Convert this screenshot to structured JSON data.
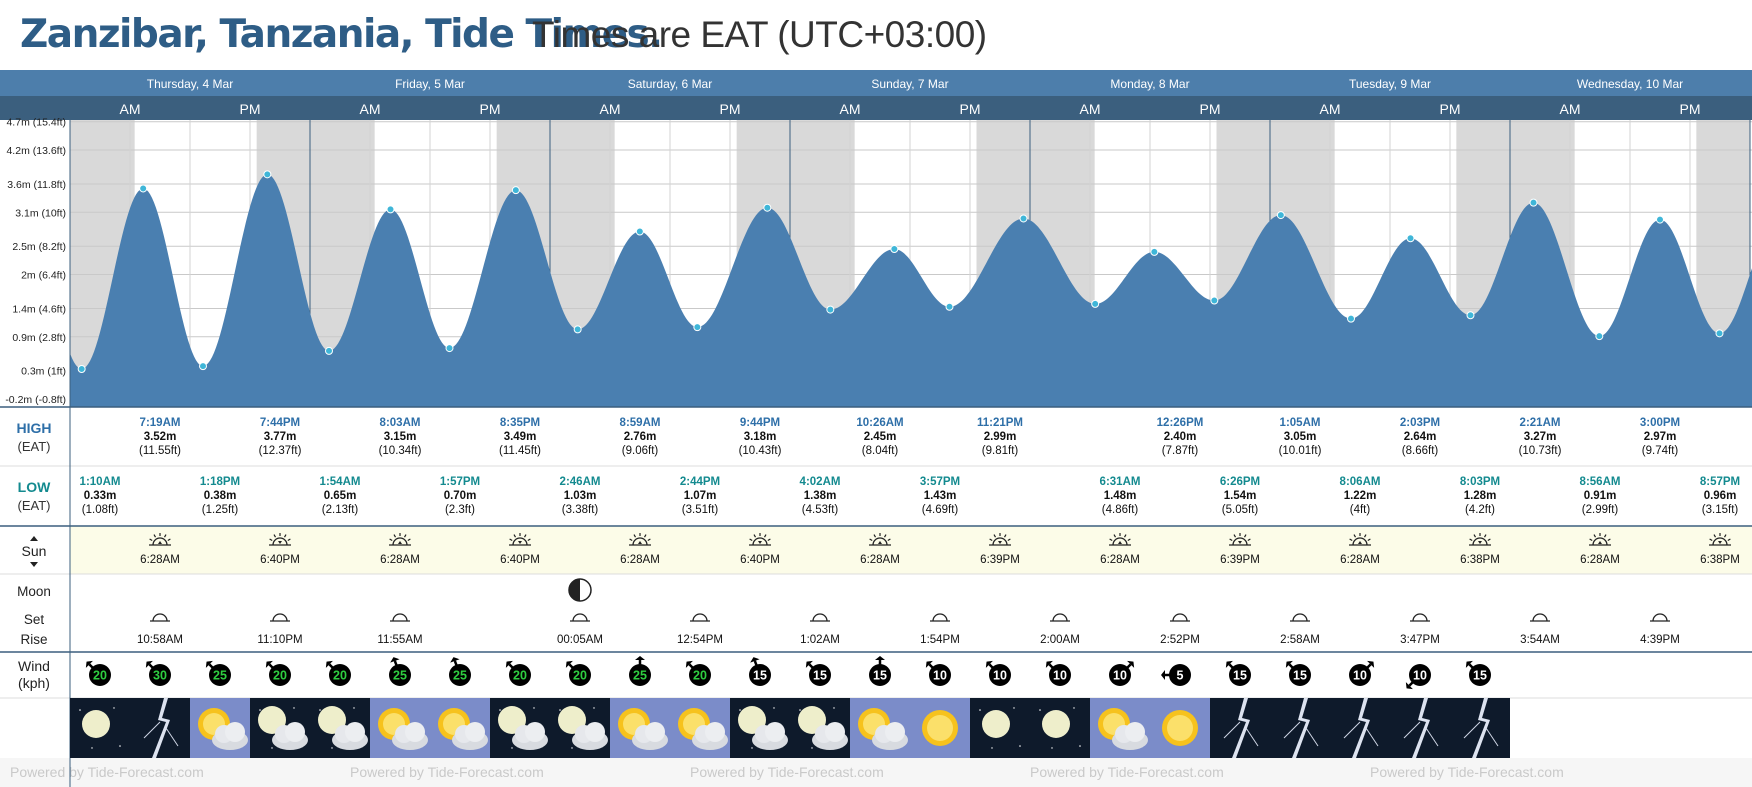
{
  "title": {
    "main": "Zanzibar, Tanzania, Tide Times.",
    "sub": "Times are EAT (UTC+03:00)"
  },
  "days": [
    "Thursday, 4 Mar",
    "Friday, 5 Mar",
    "Saturday, 6 Mar",
    "Sunday, 7 Mar",
    "Monday, 8 Mar",
    "Tuesday, 9 Mar",
    "Wednesday, 10 Mar"
  ],
  "halves": [
    "AM",
    "PM"
  ],
  "y_axis_ticks": [
    {
      "value": 4.7,
      "label": "4.7m (15.4ft)"
    },
    {
      "value": 4.2,
      "label": "4.2m (13.6ft)"
    },
    {
      "value": 3.6,
      "label": "3.6m (11.8ft)"
    },
    {
      "value": 3.1,
      "label": "3.1m (10ft)"
    },
    {
      "value": 2.5,
      "label": "2.5m (8.2ft)"
    },
    {
      "value": 2.0,
      "label": "2m (6.4ft)"
    },
    {
      "value": 1.4,
      "label": "1.4m (4.6ft)"
    },
    {
      "value": 0.9,
      "label": "0.9m (2.8ft)"
    },
    {
      "value": 0.3,
      "label": "0.3m (1ft)"
    },
    {
      "value": -0.2,
      "label": "-0.2m (-0.8ft)"
    }
  ],
  "night_shading": [
    {
      "day": 0,
      "start": "00:00",
      "end": "06:28"
    },
    {
      "day": 0,
      "start": "18:40",
      "end": "24:00"
    },
    {
      "day": 1,
      "start": "00:00",
      "end": "06:28"
    },
    {
      "day": 1,
      "start": "18:40",
      "end": "24:00"
    },
    {
      "day": 2,
      "start": "00:00",
      "end": "06:28"
    },
    {
      "day": 2,
      "start": "18:40",
      "end": "24:00"
    },
    {
      "day": 3,
      "start": "00:00",
      "end": "06:28"
    },
    {
      "day": 3,
      "start": "18:39",
      "end": "24:00"
    },
    {
      "day": 4,
      "start": "00:00",
      "end": "06:28"
    },
    {
      "day": 4,
      "start": "18:39",
      "end": "24:00"
    },
    {
      "day": 5,
      "start": "00:00",
      "end": "06:28"
    },
    {
      "day": 5,
      "start": "18:38",
      "end": "24:00"
    },
    {
      "day": 6,
      "start": "00:00",
      "end": "06:28"
    },
    {
      "day": 6,
      "start": "18:38",
      "end": "24:00"
    }
  ],
  "row_labels": {
    "high": "HIGH",
    "high_tz": "(EAT)",
    "low": "LOW",
    "low_tz": "(EAT)",
    "sun": "Sun",
    "moon": "Moon",
    "set": "Set",
    "rise": "Rise",
    "wind": "Wind",
    "wind_unit": "(kph)"
  },
  "chart_data": {
    "type": "area",
    "unit": "m",
    "ylim": [
      -0.2,
      4.7
    ],
    "tides": [
      {
        "day": 0,
        "kind": "low",
        "time": "1:10AM",
        "height_m": 0.33,
        "m": "0.33m",
        "ft": "(1.08ft)"
      },
      {
        "day": 0,
        "kind": "high",
        "time": "7:19AM",
        "height_m": 3.52,
        "m": "3.52m",
        "ft": "(11.55ft)"
      },
      {
        "day": 0,
        "kind": "low",
        "time": "1:18PM",
        "height_m": 0.38,
        "m": "0.38m",
        "ft": "(1.25ft)"
      },
      {
        "day": 0,
        "kind": "high",
        "time": "7:44PM",
        "height_m": 3.77,
        "m": "3.77m",
        "ft": "(12.37ft)"
      },
      {
        "day": 1,
        "kind": "low",
        "time": "1:54AM",
        "height_m": 0.65,
        "m": "0.65m",
        "ft": "(2.13ft)"
      },
      {
        "day": 1,
        "kind": "high",
        "time": "8:03AM",
        "height_m": 3.15,
        "m": "3.15m",
        "ft": "(10.34ft)"
      },
      {
        "day": 1,
        "kind": "low",
        "time": "1:57PM",
        "height_m": 0.7,
        "m": "0.70m",
        "ft": "(2.3ft)"
      },
      {
        "day": 1,
        "kind": "high",
        "time": "8:35PM",
        "height_m": 3.49,
        "m": "3.49m",
        "ft": "(11.45ft)"
      },
      {
        "day": 2,
        "kind": "low",
        "time": "2:46AM",
        "height_m": 1.03,
        "m": "1.03m",
        "ft": "(3.38ft)"
      },
      {
        "day": 2,
        "kind": "high",
        "time": "8:59AM",
        "height_m": 2.76,
        "m": "2.76m",
        "ft": "(9.06ft)"
      },
      {
        "day": 2,
        "kind": "low",
        "time": "2:44PM",
        "height_m": 1.07,
        "m": "1.07m",
        "ft": "(3.51ft)"
      },
      {
        "day": 2,
        "kind": "high",
        "time": "9:44PM",
        "height_m": 3.18,
        "m": "3.18m",
        "ft": "(10.43ft)"
      },
      {
        "day": 3,
        "kind": "low",
        "time": "4:02AM",
        "height_m": 1.38,
        "m": "1.38m",
        "ft": "(4.53ft)"
      },
      {
        "day": 3,
        "kind": "high",
        "time": "10:26AM",
        "height_m": 2.45,
        "m": "2.45m",
        "ft": "(8.04ft)"
      },
      {
        "day": 3,
        "kind": "low",
        "time": "3:57PM",
        "height_m": 1.43,
        "m": "1.43m",
        "ft": "(4.69ft)"
      },
      {
        "day": 3,
        "kind": "high",
        "time": "11:21PM",
        "height_m": 2.99,
        "m": "2.99m",
        "ft": "(9.81ft)"
      },
      {
        "day": 4,
        "kind": "low",
        "time": "6:31AM",
        "height_m": 1.48,
        "m": "1.48m",
        "ft": "(4.86ft)"
      },
      {
        "day": 4,
        "kind": "high",
        "time": "12:26PM",
        "height_m": 2.4,
        "m": "2.40m",
        "ft": "(7.87ft)"
      },
      {
        "day": 4,
        "kind": "low",
        "time": "6:26PM",
        "height_m": 1.54,
        "m": "1.54m",
        "ft": "(5.05ft)"
      },
      {
        "day": 5,
        "kind": "high",
        "time": "1:05AM",
        "height_m": 3.05,
        "m": "3.05m",
        "ft": "(10.01ft)"
      },
      {
        "day": 5,
        "kind": "low",
        "time": "8:06AM",
        "height_m": 1.22,
        "m": "1.22m",
        "ft": "(4ft)"
      },
      {
        "day": 5,
        "kind": "high",
        "time": "2:03PM",
        "height_m": 2.64,
        "m": "2.64m",
        "ft": "(8.66ft)"
      },
      {
        "day": 5,
        "kind": "low",
        "time": "8:03PM",
        "height_m": 1.28,
        "m": "1.28m",
        "ft": "(4.2ft)"
      },
      {
        "day": 6,
        "kind": "high",
        "time": "2:21AM",
        "height_m": 3.27,
        "m": "3.27m",
        "ft": "(10.73ft)"
      },
      {
        "day": 6,
        "kind": "low",
        "time": "8:56AM",
        "height_m": 0.91,
        "m": "0.91m",
        "ft": "(2.99ft)"
      },
      {
        "day": 6,
        "kind": "high",
        "time": "3:00PM",
        "height_m": 2.97,
        "m": "2.97m",
        "ft": "(9.74ft)"
      },
      {
        "day": 6,
        "kind": "low",
        "time": "8:57PM",
        "height_m": 0.96,
        "m": "0.96m",
        "ft": "(3.15ft)"
      }
    ]
  },
  "sun": [
    {
      "day": 0,
      "rise": "6:28AM",
      "set": "6:40PM"
    },
    {
      "day": 1,
      "rise": "6:28AM",
      "set": "6:40PM"
    },
    {
      "day": 2,
      "rise": "6:28AM",
      "set": "6:40PM"
    },
    {
      "day": 3,
      "rise": "6:28AM",
      "set": "6:39PM"
    },
    {
      "day": 4,
      "rise": "6:28AM",
      "set": "6:39PM"
    },
    {
      "day": 5,
      "rise": "6:28AM",
      "set": "6:38PM"
    },
    {
      "day": 6,
      "rise": "6:28AM",
      "set": "6:38PM"
    }
  ],
  "moon_phase": {
    "day": 2,
    "icon": "half-moon-icon"
  },
  "moon": [
    {
      "day": 0,
      "slot": 1,
      "kind": "set",
      "time": "10:58AM"
    },
    {
      "day": 0,
      "slot": 3,
      "kind": "set",
      "time": "11:10PM"
    },
    {
      "day": 1,
      "slot": 1,
      "kind": "set",
      "time": "11:55AM"
    },
    {
      "day": 2,
      "slot": 0,
      "kind": "set",
      "time": "00:05AM"
    },
    {
      "day": 2,
      "slot": 2,
      "kind": "set",
      "time": "12:54PM"
    },
    {
      "day": 3,
      "slot": 0,
      "kind": "set",
      "time": "1:02AM"
    },
    {
      "day": 3,
      "slot": 2,
      "kind": "set",
      "time": "1:54PM"
    },
    {
      "day": 4,
      "slot": 0,
      "kind": "set",
      "time": "2:00AM"
    },
    {
      "day": 4,
      "slot": 2,
      "kind": "set",
      "time": "2:52PM"
    },
    {
      "day": 5,
      "slot": 0,
      "kind": "set",
      "time": "2:58AM"
    },
    {
      "day": 5,
      "slot": 2,
      "kind": "set",
      "time": "3:47PM"
    },
    {
      "day": 6,
      "slot": 0,
      "kind": "set",
      "time": "3:54AM"
    },
    {
      "day": 6,
      "slot": 2,
      "kind": "set",
      "time": "4:39PM"
    }
  ],
  "wind": [
    {
      "speed": "20",
      "dir": 225,
      "color": "#2ecc40"
    },
    {
      "speed": "30",
      "dir": 225,
      "color": "#2ecc40"
    },
    {
      "speed": "25",
      "dir": 225,
      "color": "#2ecc40"
    },
    {
      "speed": "20",
      "dir": 225,
      "color": "#2ecc40"
    },
    {
      "speed": "20",
      "dir": 225,
      "color": "#2ecc40"
    },
    {
      "speed": "25",
      "dir": 200,
      "color": "#2ecc40"
    },
    {
      "speed": "25",
      "dir": 200,
      "color": "#2ecc40"
    },
    {
      "speed": "20",
      "dir": 225,
      "color": "#2ecc40"
    },
    {
      "speed": "20",
      "dir": 225,
      "color": "#2ecc40"
    },
    {
      "speed": "25",
      "dir": 180,
      "color": "#2ecc40"
    },
    {
      "speed": "20",
      "dir": 225,
      "color": "#2ecc40"
    },
    {
      "speed": "15",
      "dir": 200,
      "color": "#ffffff"
    },
    {
      "speed": "15",
      "dir": 225,
      "color": "#ffffff"
    },
    {
      "speed": "15",
      "dir": 180,
      "color": "#ffffff"
    },
    {
      "speed": "10",
      "dir": 225,
      "color": "#ffffff"
    },
    {
      "speed": "10",
      "dir": 225,
      "color": "#ffffff"
    },
    {
      "speed": "10",
      "dir": 225,
      "color": "#ffffff"
    },
    {
      "speed": "10",
      "dir": 135,
      "color": "#ffffff"
    },
    {
      "speed": "5",
      "dir": 270,
      "color": "#ffffff"
    },
    {
      "speed": "15",
      "dir": 225,
      "color": "#ffffff"
    },
    {
      "speed": "15",
      "dir": 225,
      "color": "#ffffff"
    },
    {
      "speed": "10",
      "dir": 135,
      "color": "#ffffff"
    },
    {
      "speed": "10",
      "dir": 315,
      "color": "#ffffff"
    },
    {
      "speed": "15",
      "dir": 225,
      "color": "#ffffff"
    }
  ],
  "weather": [
    "clear-night",
    "thunderstorm",
    "sun-cloud",
    "moon-cloud",
    "moon-cloud",
    "sun-cloud",
    "sun-cloud",
    "moon-cloud",
    "moon-cloud",
    "sun-cloud",
    "sun-cloud",
    "moon-cloud",
    "moon-cloud",
    "sun-cloud",
    "sun",
    "clear-night",
    "clear-night",
    "sun-cloud",
    "sun",
    "thunderstorm",
    "thunderstorm",
    "thunderstorm",
    "thunderstorm",
    "thunderstorm"
  ],
  "footer_text": "Powered by Tide-Forecast.com",
  "colors": {
    "header": "#4d7eab",
    "subheader": "#3b5f7e",
    "tide": "#4a7fb0",
    "tide_point": "#3fb6d8",
    "night": "#d9d9d9",
    "high_label": "#2e6fa8",
    "low_label": "#138a8f",
    "sun_row": "#fcfce8"
  }
}
